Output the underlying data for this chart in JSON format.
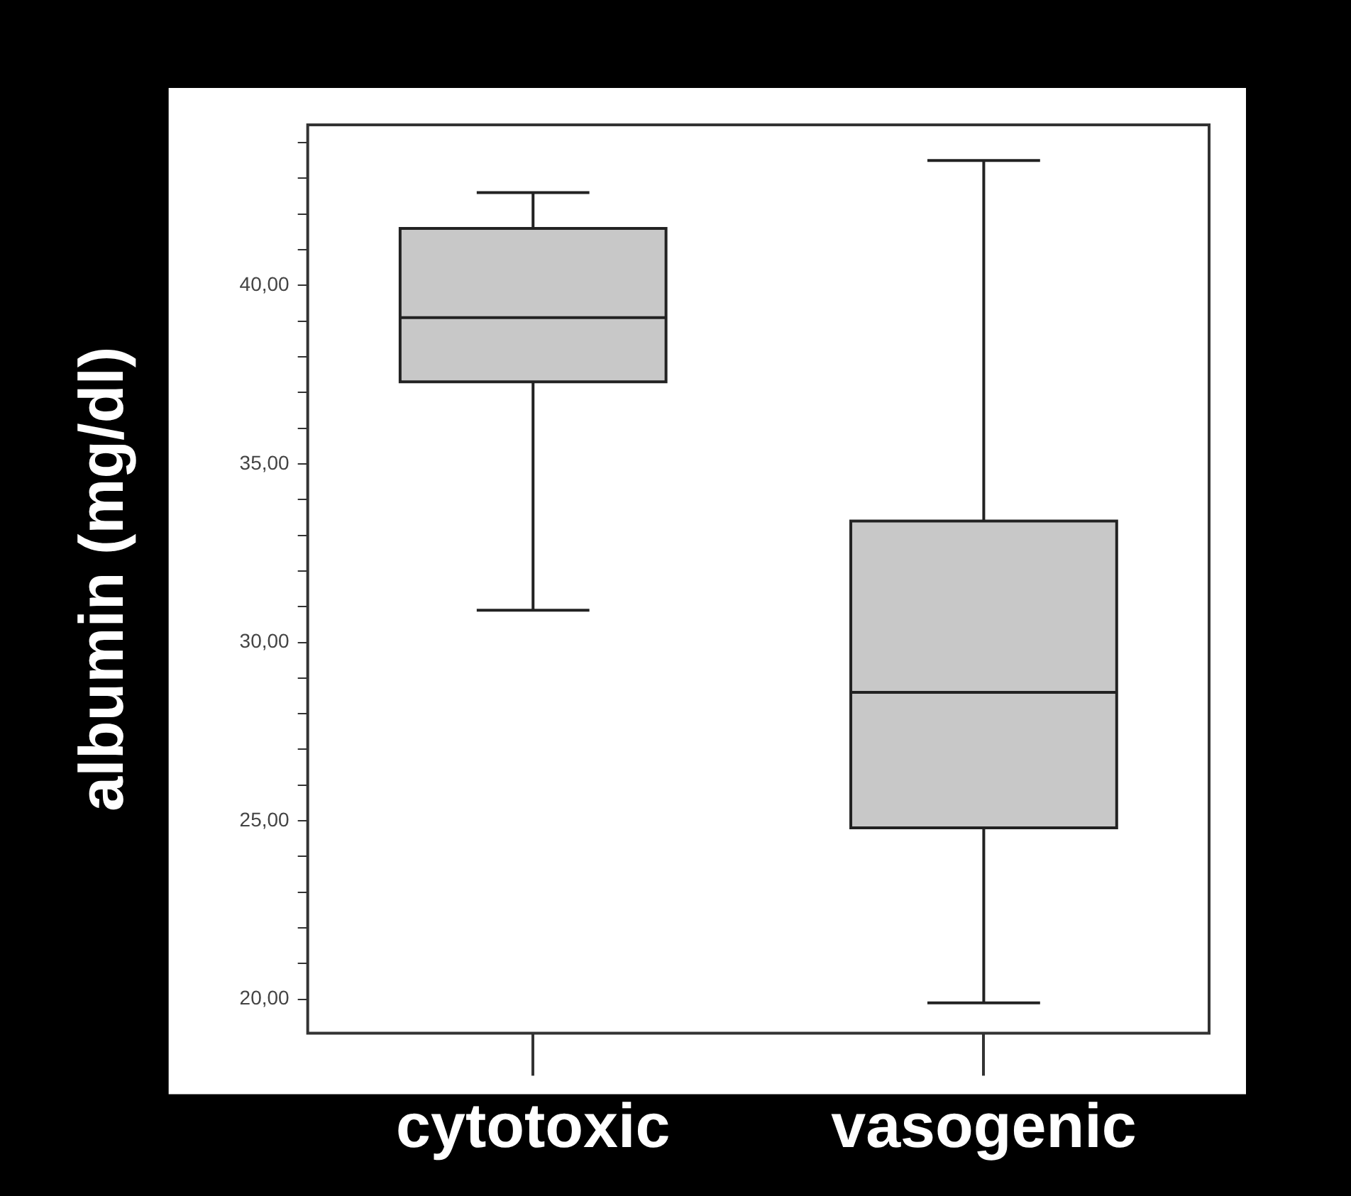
{
  "chart_data": {
    "type": "box",
    "ylabel": "albumin (mg/dl)",
    "categories": [
      "cytotoxic",
      "vasogenic"
    ],
    "color": "#c8c8c8",
    "boxes": [
      {
        "low": 30.9,
        "q1": 37.3,
        "median": 39.1,
        "q3": 41.6,
        "high": 42.6
      },
      {
        "low": 19.9,
        "q1": 24.8,
        "median": 28.6,
        "q3": 33.4,
        "high": 43.5
      }
    ],
    "ylim": [
      19.05,
      44.5
    ],
    "yticks": [
      {
        "value": 20,
        "label": "20,00"
      },
      {
        "value": 21,
        "label": null
      },
      {
        "value": 22,
        "label": null
      },
      {
        "value": 23,
        "label": null
      },
      {
        "value": 24,
        "label": null
      },
      {
        "value": 25,
        "label": "25,00"
      },
      {
        "value": 26,
        "label": null
      },
      {
        "value": 27,
        "label": null
      },
      {
        "value": 28,
        "label": null
      },
      {
        "value": 29,
        "label": null
      },
      {
        "value": 30,
        "label": "30,00"
      },
      {
        "value": 31,
        "label": null
      },
      {
        "value": 32,
        "label": null
      },
      {
        "value": 33,
        "label": null
      },
      {
        "value": 34,
        "label": null
      },
      {
        "value": 35,
        "label": "35,00"
      },
      {
        "value": 36,
        "label": null
      },
      {
        "value": 37,
        "label": null
      },
      {
        "value": 38,
        "label": null
      },
      {
        "value": 39,
        "label": null
      },
      {
        "value": 40,
        "label": "40,00"
      },
      {
        "value": 41,
        "label": null
      },
      {
        "value": 42,
        "label": null
      },
      {
        "value": 43,
        "label": null
      },
      {
        "value": 44,
        "label": null
      }
    ]
  }
}
